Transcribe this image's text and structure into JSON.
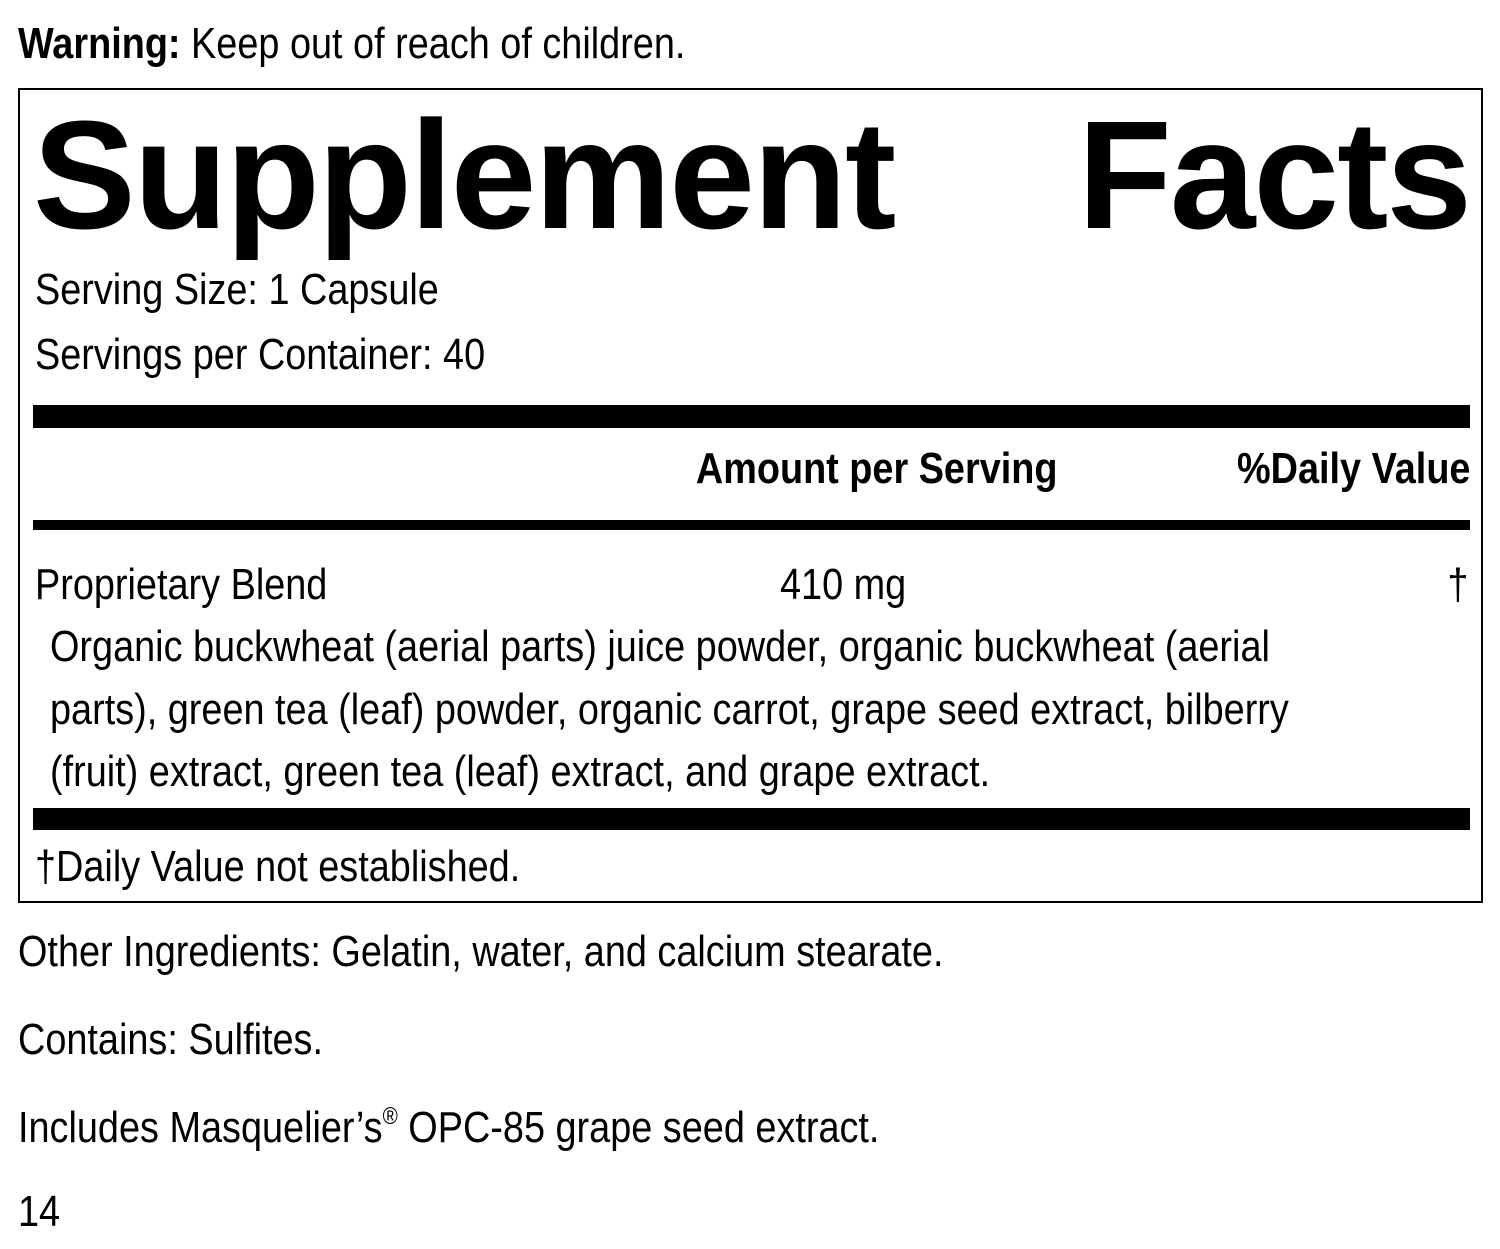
{
  "warning": {
    "label": "Warning:",
    "text": " Keep out of reach of children."
  },
  "title": {
    "word1": "Supplement",
    "word2": "Facts"
  },
  "serving_size": "Serving Size: 1 Capsule",
  "servings_per_container": "Servings per Container: 40",
  "header": {
    "amount": "Amount per Serving",
    "daily_value": "%Daily Value"
  },
  "blend": {
    "name": "Proprietary Blend",
    "amount": "410 mg",
    "dv": "†",
    "ingredients": [
      "Organic buckwheat (aerial parts) juice powder, organic buckwheat (aerial",
      "parts), green tea (leaf) powder, organic carrot, grape seed extract, bilberry",
      "(fruit) extract, green tea (leaf) extract, and grape extract."
    ]
  },
  "footnote": "†Daily Value not established.",
  "other_ingredients": "Other Ingredients: Gelatin, water, and calcium stearate.",
  "contains": "Contains: Sulfites.",
  "includes": {
    "pre": "Includes Masquelier’s",
    "mark": "®",
    "post": " OPC-85 grape seed extract."
  },
  "page_number": "14"
}
